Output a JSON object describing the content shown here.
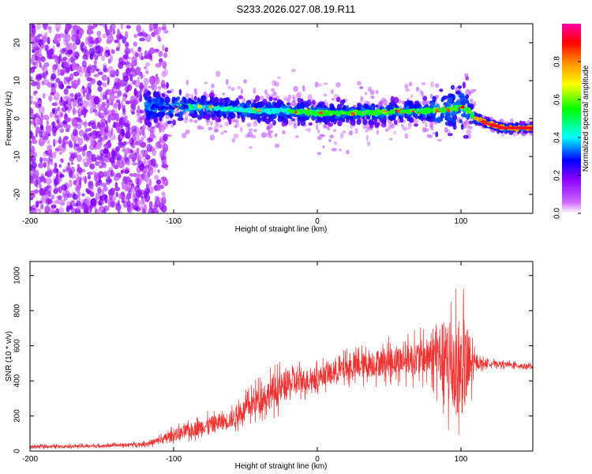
{
  "title": "S233.2026.027.08.19.R11",
  "chart_data": [
    {
      "type": "heatmap",
      "name": "spectrogram",
      "xlabel": "Height of straight line (km)",
      "ylabel": "Frequency (Hz)",
      "xlim": [
        -200,
        150
      ],
      "ylim": [
        -25,
        25
      ],
      "xticks": [
        -200,
        -100,
        0,
        100
      ],
      "yticks": [
        -20,
        -10,
        0,
        10,
        20
      ],
      "colorbar": {
        "label": "Normalized spectral amplitude",
        "ticks": [
          0.0,
          0.2,
          0.4,
          0.6,
          0.8
        ],
        "range": [
          0,
          1
        ],
        "colormap": [
          "#ffffff",
          "#cc66ff",
          "#8800ff",
          "#0000ff",
          "#00ffff",
          "#00ff00",
          "#ffff00",
          "#ff8800",
          "#ff0000",
          "#ff00aa"
        ]
      },
      "ridge": {
        "x": [
          -120,
          -100,
          -80,
          -60,
          -40,
          -20,
          0,
          20,
          40,
          60,
          80,
          90,
          100,
          105,
          110,
          120,
          130,
          150
        ],
        "frequency": [
          3,
          3,
          3,
          2.5,
          2,
          2,
          1.5,
          1.5,
          1.5,
          2,
          2,
          2.5,
          3,
          2,
          0,
          -1.5,
          -2.5,
          -2.5
        ]
      }
    },
    {
      "type": "line",
      "name": "snr",
      "xlabel": "Height of straight line (km)",
      "ylabel": "SNR (10 * v/v)",
      "xlim": [
        -200,
        150
      ],
      "ylim": [
        0,
        1080
      ],
      "xticks": [
        -200,
        -100,
        0,
        100
      ],
      "yticks": [
        0,
        200,
        400,
        600,
        800,
        1000
      ],
      "color": "#ee3333",
      "envelope": {
        "x": [
          -200,
          -150,
          -120,
          -110,
          -100,
          -80,
          -60,
          -50,
          -40,
          -30,
          -20,
          -10,
          0,
          20,
          40,
          60,
          80,
          85,
          90,
          95,
          100,
          105,
          110,
          120,
          150
        ],
        "mean": [
          25,
          30,
          40,
          60,
          90,
          140,
          180,
          240,
          300,
          340,
          380,
          400,
          420,
          470,
          500,
          520,
          540,
          550,
          500,
          470,
          460,
          480,
          500,
          500,
          480
        ],
        "spread": [
          15,
          15,
          20,
          40,
          60,
          80,
          90,
          110,
          140,
          160,
          150,
          120,
          100,
          120,
          140,
          150,
          200,
          320,
          450,
          480,
          480,
          420,
          60,
          30,
          25
        ]
      }
    }
  ]
}
